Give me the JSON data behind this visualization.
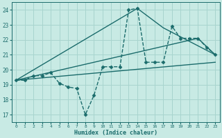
{
  "bg_color": "#c8eae4",
  "grid_color": "#a8d4ce",
  "line_color": "#1a6b6b",
  "xlabel": "Humidex (Indice chaleur)",
  "xlim": [
    -0.5,
    23.5
  ],
  "ylim": [
    16.5,
    24.5
  ],
  "yticks": [
    17,
    18,
    19,
    20,
    21,
    22,
    23,
    24
  ],
  "xticks": [
    0,
    1,
    2,
    3,
    4,
    5,
    6,
    7,
    8,
    9,
    10,
    11,
    12,
    13,
    14,
    15,
    16,
    17,
    18,
    19,
    20,
    21,
    22,
    23
  ],
  "series": [
    {
      "x": [
        0,
        1,
        2,
        3,
        4,
        5,
        6,
        7,
        8,
        9,
        10,
        11,
        12,
        13,
        14,
        15,
        16,
        17,
        18,
        19,
        20,
        21,
        22,
        23
      ],
      "y": [
        19.3,
        19.3,
        19.6,
        19.6,
        19.8,
        19.1,
        18.85,
        18.75,
        17.0,
        18.3,
        20.2,
        20.2,
        20.2,
        24.0,
        24.1,
        20.5,
        20.5,
        20.5,
        22.9,
        22.1,
        22.1,
        22.1,
        21.5,
        21.0
      ],
      "marker": "D",
      "linestyle": "--",
      "linewidth": 1.0,
      "markersize": 2.5
    },
    {
      "x": [
        0,
        21,
        23
      ],
      "y": [
        19.3,
        22.1,
        21.0
      ],
      "marker": null,
      "linestyle": "-",
      "linewidth": 1.0,
      "markersize": 0
    },
    {
      "x": [
        0,
        14,
        17,
        23
      ],
      "y": [
        19.3,
        24.1,
        22.8,
        21.0
      ],
      "marker": null,
      "linestyle": "-",
      "linewidth": 1.0,
      "markersize": 0
    },
    {
      "x": [
        0,
        23
      ],
      "y": [
        19.3,
        20.5
      ],
      "marker": null,
      "linestyle": "-",
      "linewidth": 1.0,
      "markersize": 0
    }
  ]
}
